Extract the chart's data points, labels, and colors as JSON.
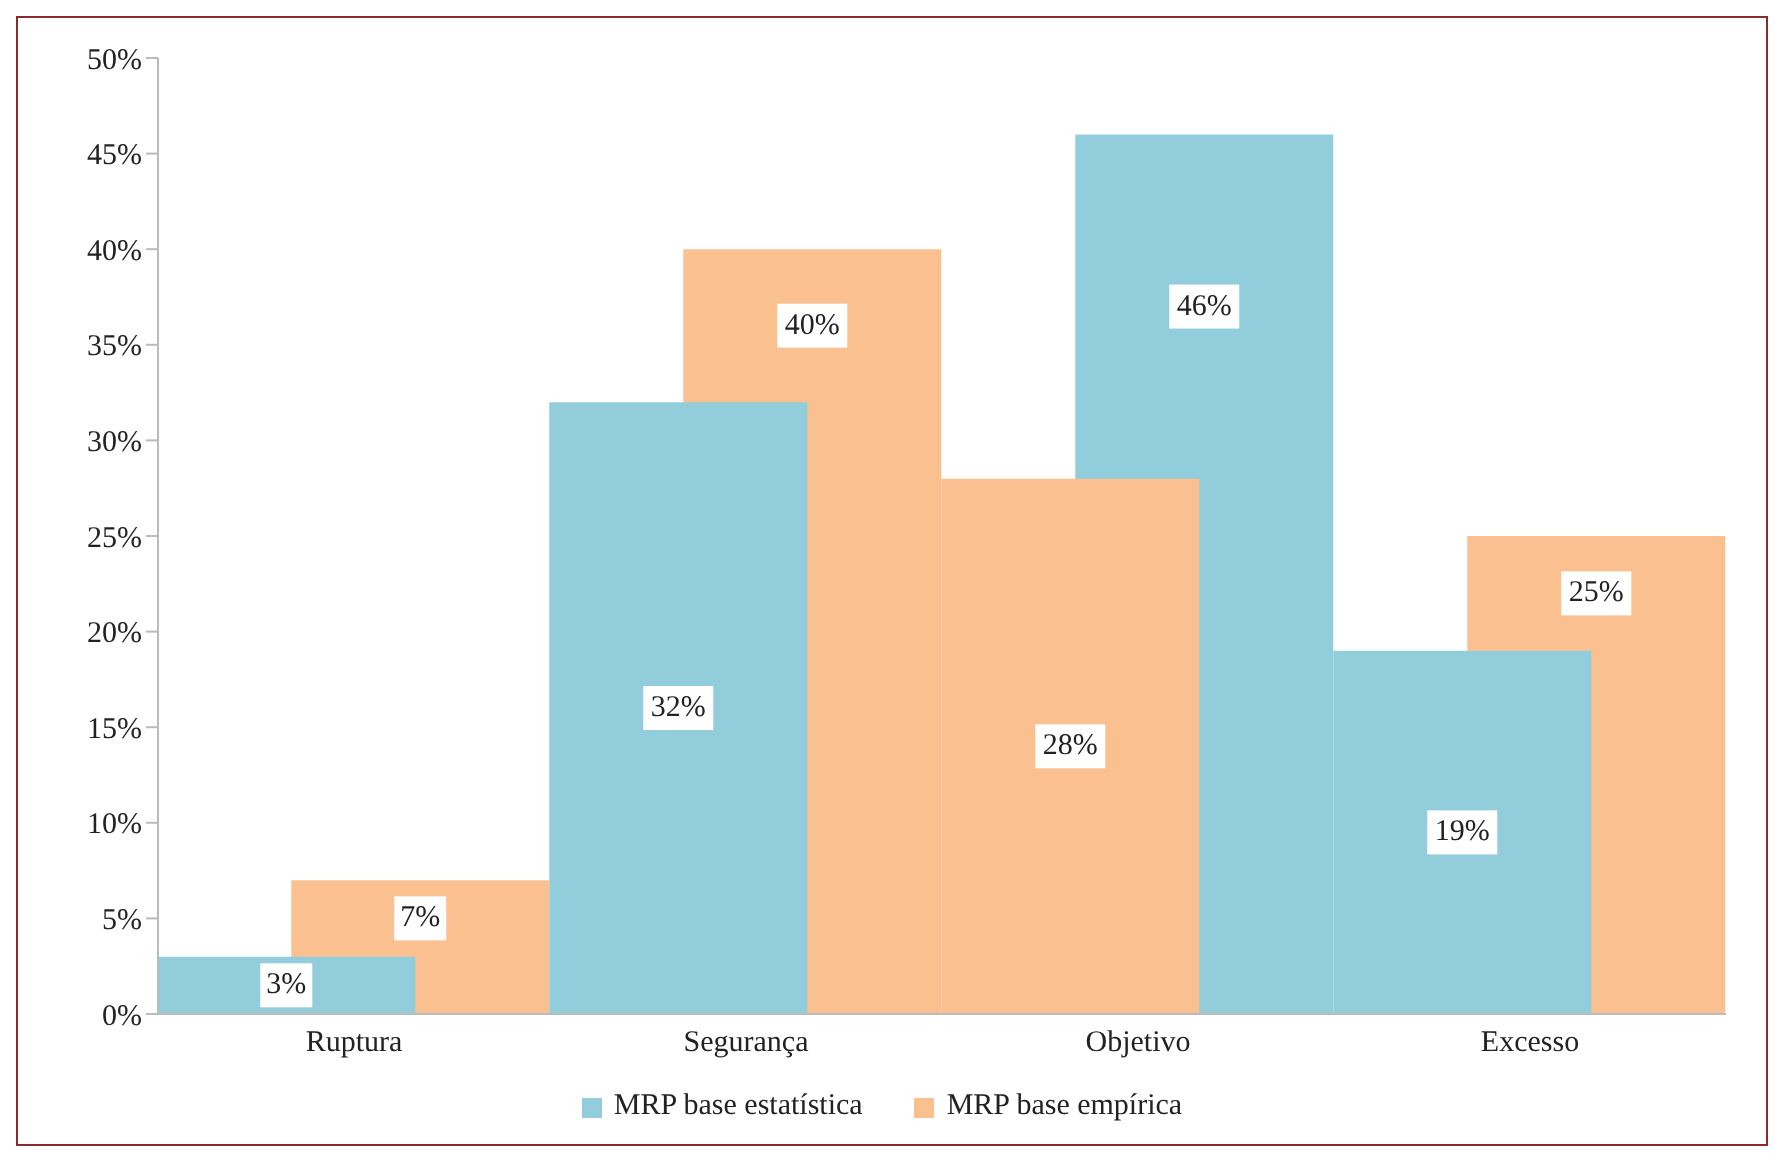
{
  "chart_data": {
    "type": "bar",
    "categories": [
      "Ruptura",
      "Segurança",
      "Objetivo",
      "Excesso"
    ],
    "series": [
      {
        "name": "MRP base estatística",
        "color": "#92cddc",
        "values": [
          3,
          32,
          46,
          19
        ],
        "value_labels": [
          "3%",
          "32%",
          "46%",
          "19%"
        ]
      },
      {
        "name": "MRP base empírica",
        "color": "#fac090",
        "values": [
          7,
          40,
          28,
          25
        ],
        "value_labels": [
          "7%",
          "40%",
          "28%",
          "25%"
        ]
      }
    ],
    "ylim": [
      0,
      50
    ],
    "yticks": [
      {
        "value": 0,
        "label": "0%"
      },
      {
        "value": 5,
        "label": "5%"
      },
      {
        "value": 10,
        "label": "10%"
      },
      {
        "value": 15,
        "label": "15%"
      },
      {
        "value": 20,
        "label": "20%"
      },
      {
        "value": 25,
        "label": "25%"
      },
      {
        "value": 30,
        "label": "30%"
      },
      {
        "value": 35,
        "label": "35%"
      },
      {
        "value": 40,
        "label": "40%"
      },
      {
        "value": 45,
        "label": "45%"
      },
      {
        "value": 50,
        "label": "50%"
      }
    ],
    "grid": false,
    "legend": "bottom"
  }
}
